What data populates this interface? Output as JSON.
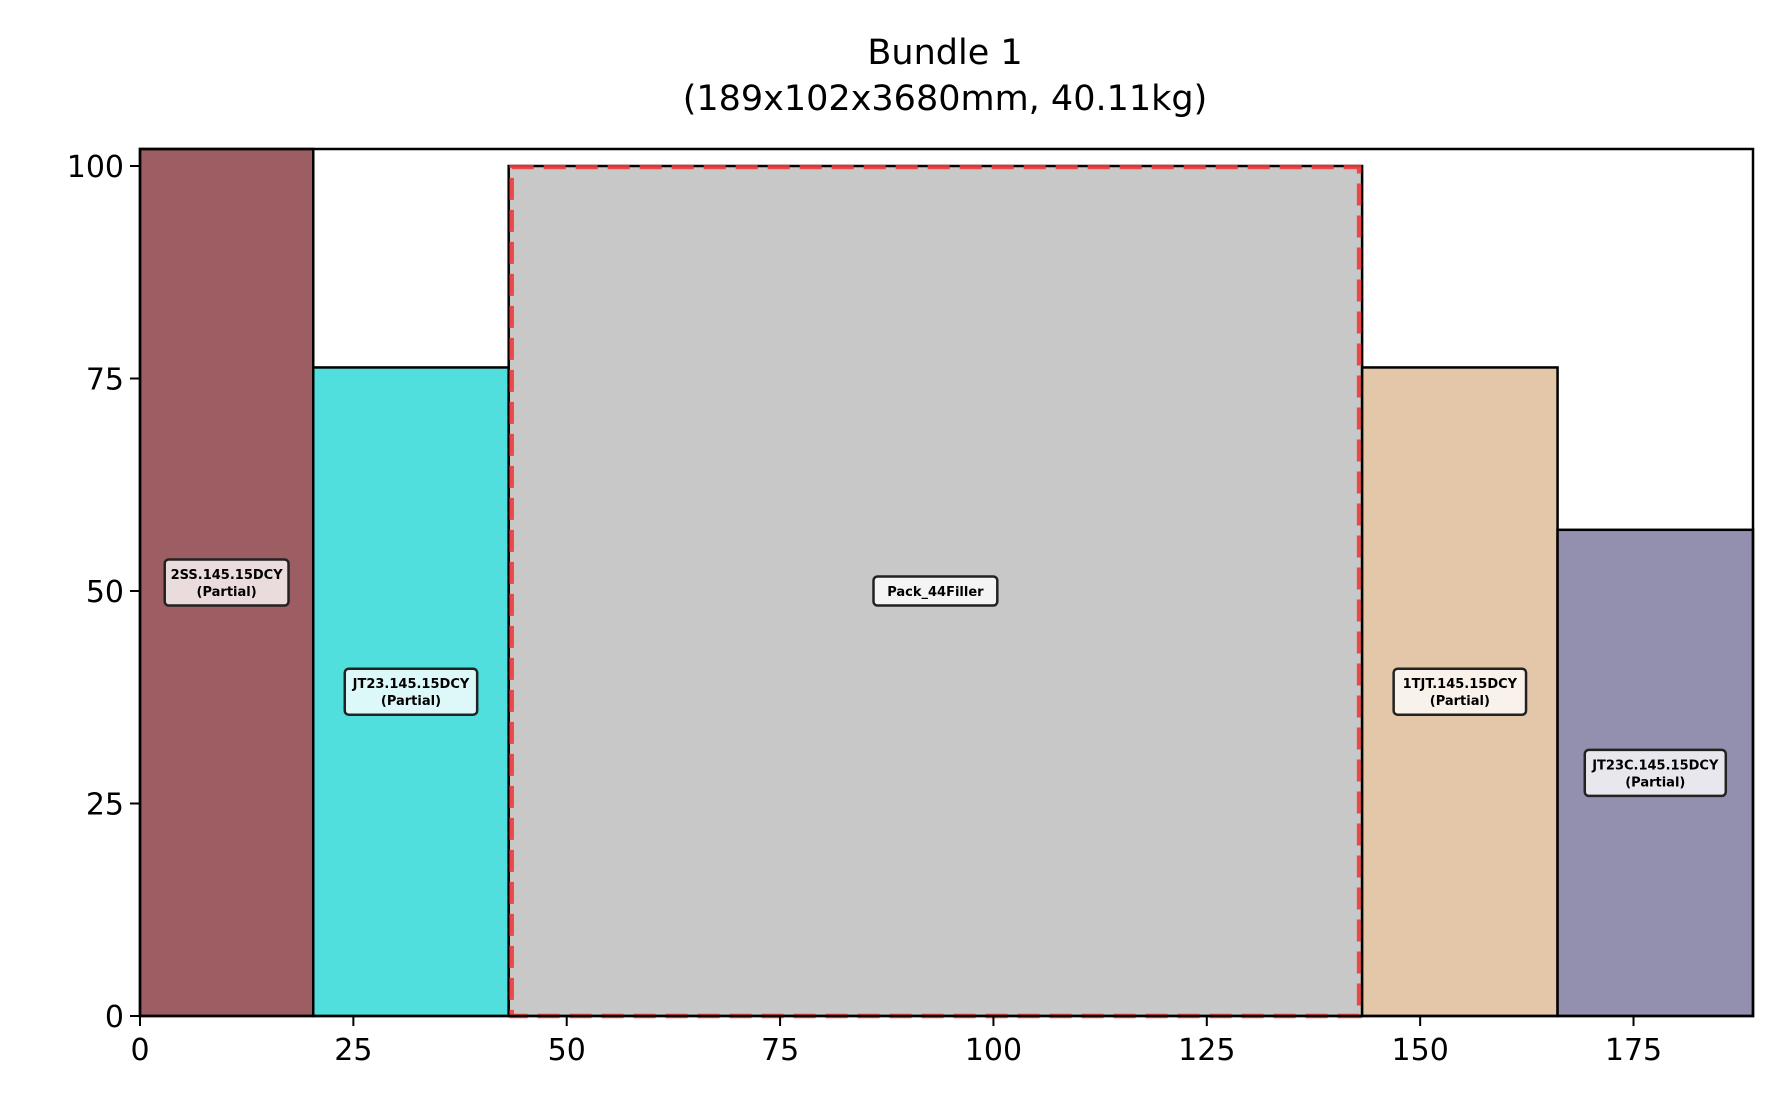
{
  "chart_data": {
    "type": "bar",
    "title": "Bundle 1",
    "subtitle": "(189x102x3680mm, 40.11kg)",
    "xlabel": "",
    "ylabel": "",
    "xlim": [
      0,
      189
    ],
    "ylim": [
      0,
      102
    ],
    "x_ticks": [
      0,
      25,
      50,
      75,
      100,
      125,
      150,
      175
    ],
    "y_ticks": [
      0,
      25,
      50,
      75,
      100
    ],
    "grid": false,
    "legend": "none",
    "boxes": [
      {
        "name": "2SS.145.15DCY",
        "note": "(Partial)",
        "x0": 0,
        "x1": 20.3,
        "y0": 0,
        "y1": 102,
        "color": "#9c5e62",
        "label_bg": "#eadcdd",
        "dashed": false
      },
      {
        "name": "JT23.145.15DCY",
        "note": "(Partial)",
        "x0": 20.3,
        "x1": 43.2,
        "y0": 0,
        "y1": 76.3,
        "color": "#50dfdd",
        "label_bg": "#dcf8f8",
        "dashed": false
      },
      {
        "name": "Pack_44Filler",
        "note": "",
        "x0": 43.2,
        "x1": 143.2,
        "y0": 0,
        "y1": 100,
        "color": "#c8c8c8",
        "label_bg": "#f4f4f4",
        "dashed": true,
        "edge_color": "#ee3b3b"
      },
      {
        "name": "1TJT.145.15DCY",
        "note": "(Partial)",
        "x0": 143.2,
        "x1": 166.1,
        "y0": 0,
        "y1": 76.3,
        "color": "#e4c6a8",
        "label_bg": "#f9f2ea",
        "dashed": false
      },
      {
        "name": "JT23C.145.15DCY",
        "note": "(Partial)",
        "x0": 166.1,
        "x1": 189,
        "y0": 0,
        "y1": 57.2,
        "color": "#938fae",
        "label_bg": "#e8e7ee",
        "dashed": false
      }
    ]
  }
}
